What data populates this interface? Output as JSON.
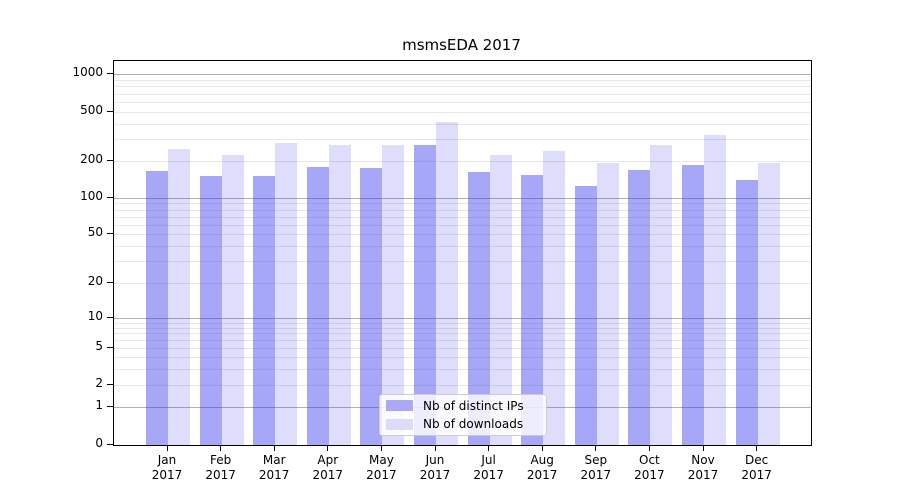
{
  "title": "msmsEDA 2017",
  "legend": {
    "items": [
      {
        "label": "Nb of distinct IPs",
        "color": "#a9a9f5"
      },
      {
        "label": "Nb of downloads",
        "color": "#dbdbfa"
      }
    ]
  },
  "colors": {
    "bar_dark": "rgba(60,60,240,0.45)",
    "bar_light": "rgba(60,60,240,0.17)",
    "grid_major": "#b0b0b0",
    "grid_minor": "#e7e7e7"
  },
  "chart_data": {
    "type": "bar",
    "title": "msmsEDA 2017",
    "categories": [
      "Jan 2017",
      "Feb 2017",
      "Mar 2017",
      "Apr 2017",
      "May 2017",
      "Jun 2017",
      "Jul 2017",
      "Aug 2017",
      "Sep 2017",
      "Oct 2017",
      "Nov 2017",
      "Dec 2017"
    ],
    "series": [
      {
        "name": "Nb of distinct IPs",
        "values": [
          165,
          152,
          152,
          180,
          175,
          268,
          163,
          153,
          126,
          168,
          185,
          140
        ]
      },
      {
        "name": "Nb of downloads",
        "values": [
          248,
          224,
          278,
          270,
          272,
          418,
          222,
          240,
          192,
          272,
          325,
          192
        ]
      }
    ],
    "yscale": "symlog",
    "ylim": [
      0,
      1300
    ],
    "y_ticks": [
      0,
      1,
      2,
      5,
      10,
      20,
      50,
      100,
      200,
      500,
      1000
    ],
    "y_gridlines_major": [
      1,
      10,
      100,
      1000
    ],
    "y_gridlines_minor": [
      2,
      3,
      4,
      5,
      6,
      7,
      8,
      9,
      20,
      30,
      40,
      50,
      60,
      70,
      80,
      90,
      200,
      300,
      400,
      500,
      600,
      700,
      800,
      900
    ],
    "grid": "both",
    "legend_position": "lower center"
  }
}
